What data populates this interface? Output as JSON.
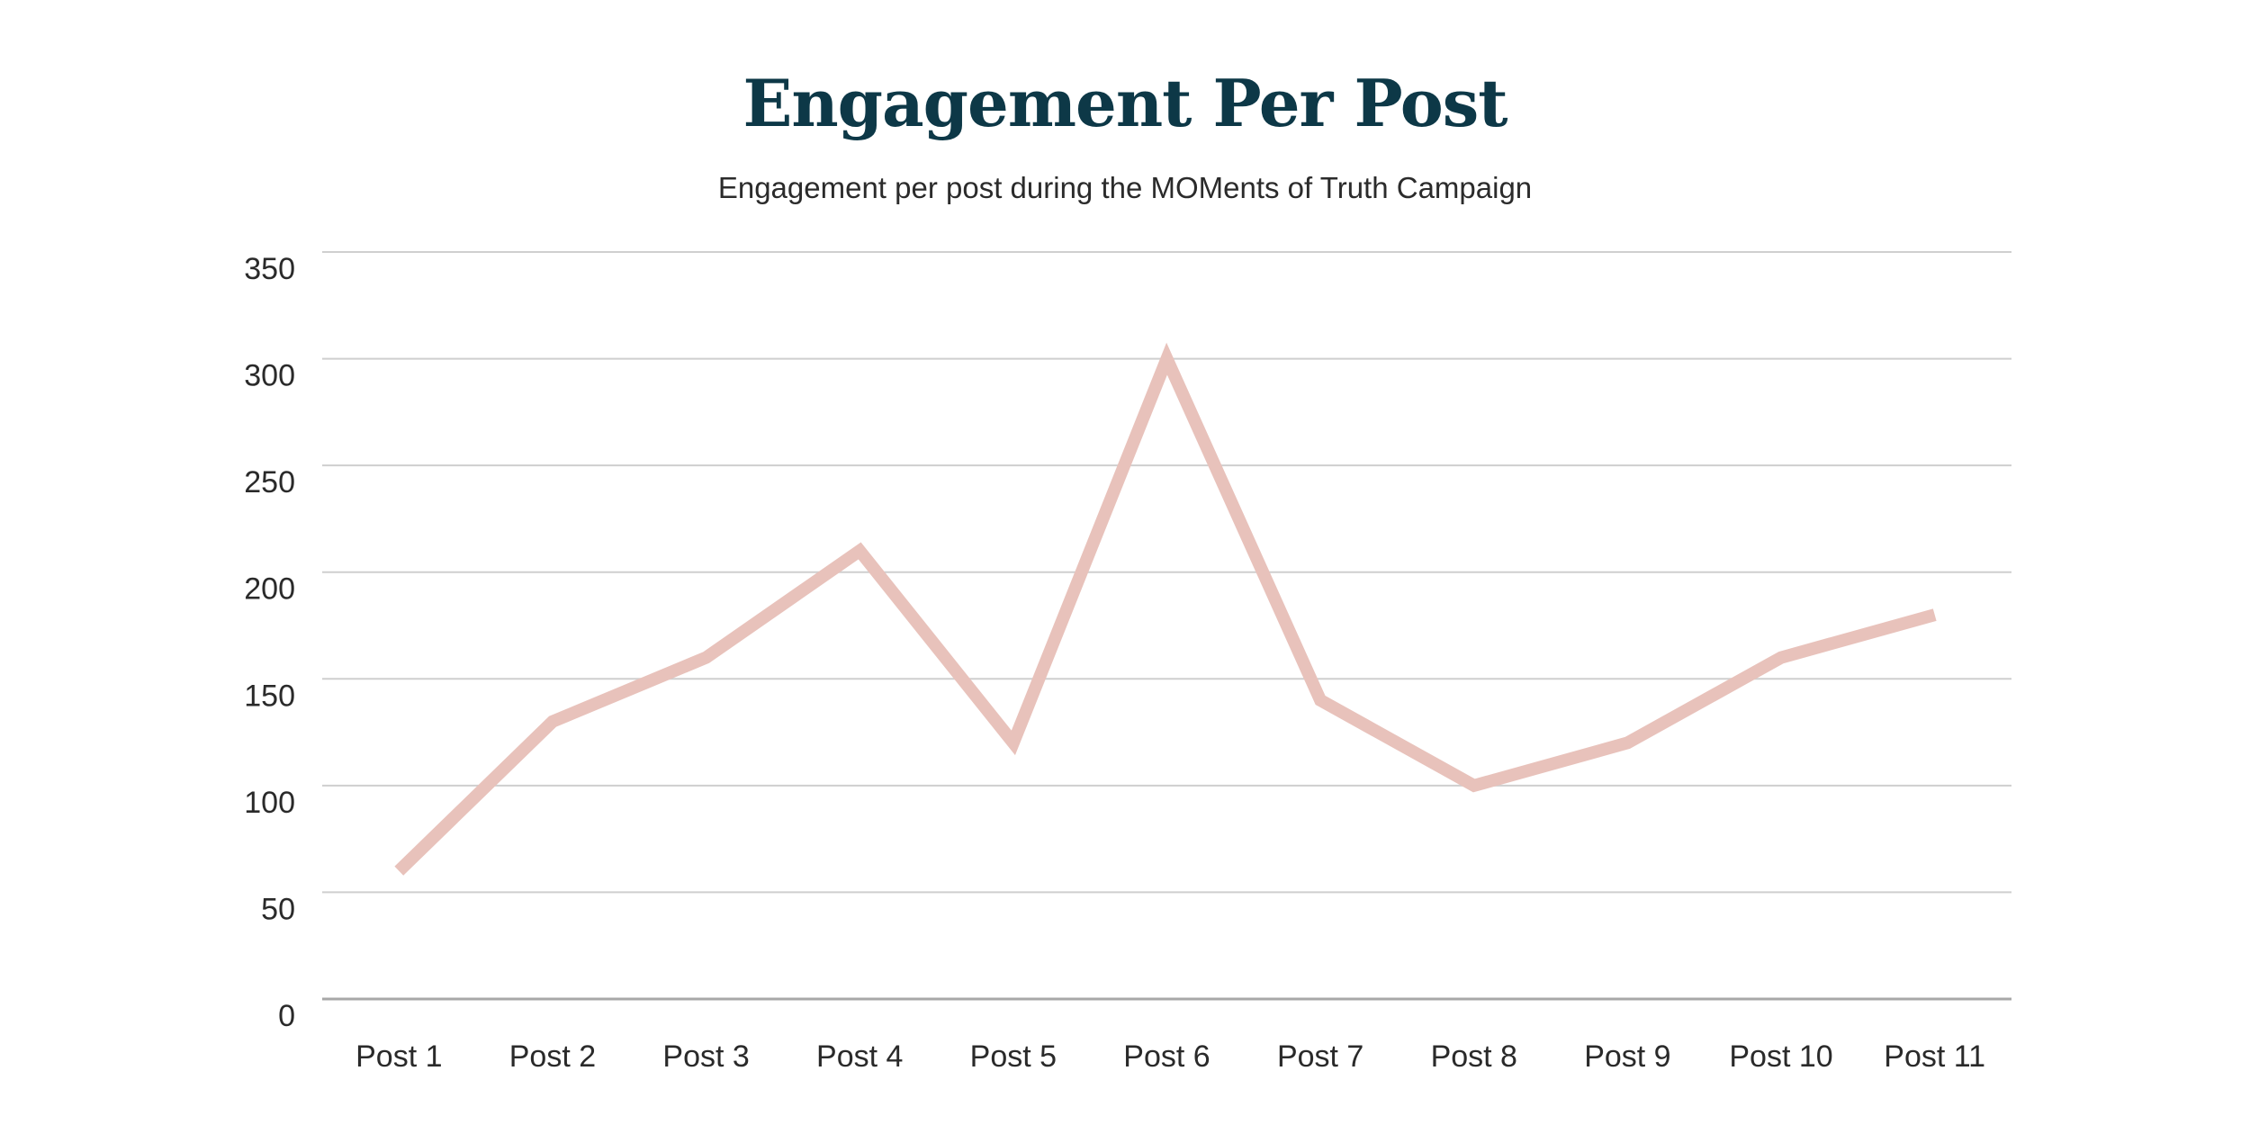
{
  "chart_data": {
    "type": "line",
    "title": "Engagement Per Post",
    "subtitle": "Engagement per post during the MOMents of Truth Campaign",
    "xlabel": "",
    "ylabel": "",
    "categories": [
      "Post 1",
      "Post 2",
      "Post 3",
      "Post 4",
      "Post 5",
      "Post 6",
      "Post 7",
      "Post 8",
      "Post 9",
      "Post 10",
      "Post 11"
    ],
    "series": [
      {
        "name": "Engagement",
        "values": [
          60,
          130,
          160,
          210,
          120,
          300,
          140,
          100,
          120,
          160,
          180
        ]
      }
    ],
    "ylim": [
      0,
      350
    ],
    "yticks": [
      "0",
      "50",
      "100",
      "150",
      "200",
      "250",
      "300",
      "350"
    ],
    "grid": true,
    "legend": "none",
    "colors": {
      "line": "#e8c2bb",
      "grid": "#cfcfcf",
      "axis": "#a8a8a8",
      "title": "#0d3847"
    }
  }
}
